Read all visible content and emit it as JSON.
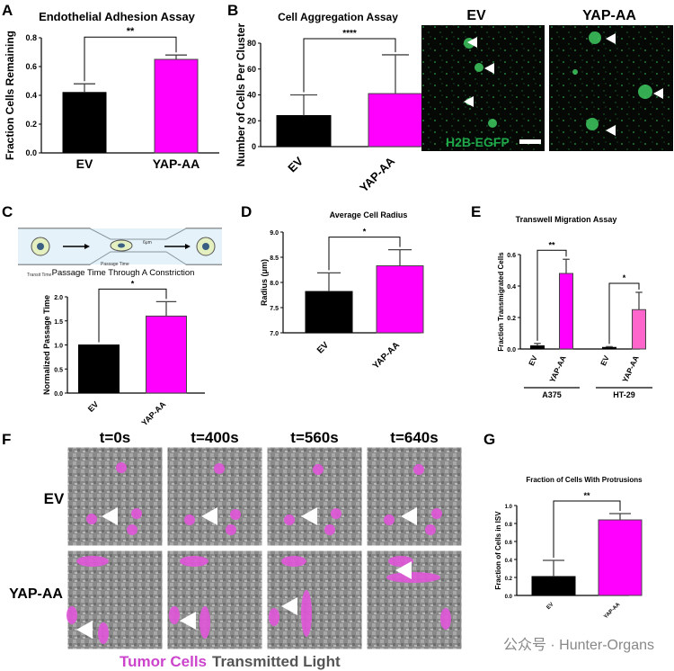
{
  "colors": {
    "ev": "#000000",
    "yap": "#ff00ff",
    "yap_light": "#ff66cc",
    "tumor": "#cc44cc",
    "transmitted": "#555555",
    "gfp": "#1fa84a"
  },
  "panel_letters": [
    "A",
    "B",
    "C",
    "D",
    "E",
    "F",
    "G"
  ],
  "microscopy_B": {
    "labels": [
      "EV",
      "YAP-AA"
    ],
    "scale_label": "H2B-EGFP",
    "icons": [
      "arrowhead-icon"
    ]
  },
  "diagram_C": {
    "labels": [
      "Transit Time",
      "Passage Time",
      "6μm"
    ],
    "title": "Passage Time Through A Constriction"
  },
  "timelapse_F": {
    "times": [
      "t=0s",
      "t=400s",
      "t=560s",
      "t=640s"
    ],
    "rows": [
      "EV",
      "YAP-AA"
    ],
    "legend_tumor": "Tumor Cells",
    "legend_light": "Transmitted Light"
  },
  "watermark": "公众号 · Hunter-Organs",
  "chart_data": [
    {
      "id": "A",
      "type": "bar",
      "title": "Endothelial Adhesion Assay",
      "ylabel": "Fraction Cells Remaining",
      "xlabel": "",
      "categories": [
        "EV",
        "YAP-AA"
      ],
      "values": [
        0.42,
        0.65
      ],
      "errors": [
        0.06,
        0.03
      ],
      "ylim": [
        0,
        0.8
      ],
      "yticks": [
        "0.0",
        "0.2",
        "0.4",
        "0.6",
        "0.8"
      ],
      "yticks_num": [
        0,
        0.2,
        0.4,
        0.6,
        0.8
      ],
      "sig": "**"
    },
    {
      "id": "B",
      "type": "bar",
      "title": "Cell Aggregation Assay",
      "ylabel": "Number of Cells Per Cluster",
      "xlabel": "",
      "categories": [
        "EV",
        "YAP-AA"
      ],
      "values": [
        24,
        41
      ],
      "errors": [
        16,
        30
      ],
      "ylim": [
        0,
        80
      ],
      "yticks": [
        "0",
        "20",
        "40",
        "60",
        "80"
      ],
      "yticks_num": [
        0,
        20,
        40,
        60,
        80
      ],
      "sig": "****"
    },
    {
      "id": "C",
      "type": "bar",
      "title": "",
      "ylabel": "Normalized Passage Time",
      "xlabel": "",
      "categories": [
        "EV",
        "YAP-AA"
      ],
      "values": [
        1.0,
        1.6
      ],
      "errors": [
        0,
        0.3
      ],
      "ylim": [
        0,
        2.0
      ],
      "yticks": [
        "0.0",
        "0.5",
        "1.0",
        "1.5",
        "2.0"
      ],
      "yticks_num": [
        0,
        0.5,
        1.0,
        1.5,
        2.0
      ],
      "sig": "*"
    },
    {
      "id": "D",
      "type": "bar",
      "title": "Average Cell Radius",
      "ylabel": "Radius (μm)",
      "xlabel": "",
      "categories": [
        "EV",
        "YAP-AA"
      ],
      "values": [
        7.82,
        8.33
      ],
      "errors": [
        0.37,
        0.32
      ],
      "ylim": [
        7.0,
        9.0
      ],
      "yticks": [
        "7.0",
        "7.5",
        "8.0",
        "8.5",
        "9.0"
      ],
      "yticks_num": [
        7.0,
        7.5,
        8.0,
        8.5,
        9.0
      ],
      "sig": "*"
    },
    {
      "id": "E",
      "type": "bar",
      "title": "Transwell Migration Assay",
      "ylabel": "Fraction Transmigrated Cells",
      "xlabel": "",
      "categories": [
        "EV",
        "YAP-AA",
        "EV",
        "YAP-AA"
      ],
      "groups": [
        "A375",
        "HT-29"
      ],
      "values": [
        0.02,
        0.48,
        0.01,
        0.25
      ],
      "errors": [
        0.015,
        0.09,
        0.005,
        0.11
      ],
      "ylim": [
        0,
        0.6
      ],
      "yticks": [
        "0.0",
        "0.2",
        "0.4",
        "0.6"
      ],
      "yticks_num": [
        0,
        0.2,
        0.4,
        0.6
      ],
      "sig": [
        "**",
        "*"
      ]
    },
    {
      "id": "G",
      "type": "bar",
      "title": "Fraction of Cells With Protrusions",
      "ylabel": "Fraction of Cells in ISV",
      "xlabel": "",
      "categories": [
        "EV",
        "YAP-AA"
      ],
      "values": [
        0.21,
        0.84
      ],
      "errors": [
        0.18,
        0.07
      ],
      "ylim": [
        0,
        1.0
      ],
      "yticks": [
        "0.0",
        "0.2",
        "0.4",
        "0.6",
        "0.8",
        "1.0"
      ],
      "yticks_num": [
        0,
        0.2,
        0.4,
        0.6,
        0.8,
        1.0
      ],
      "sig": "**"
    }
  ]
}
